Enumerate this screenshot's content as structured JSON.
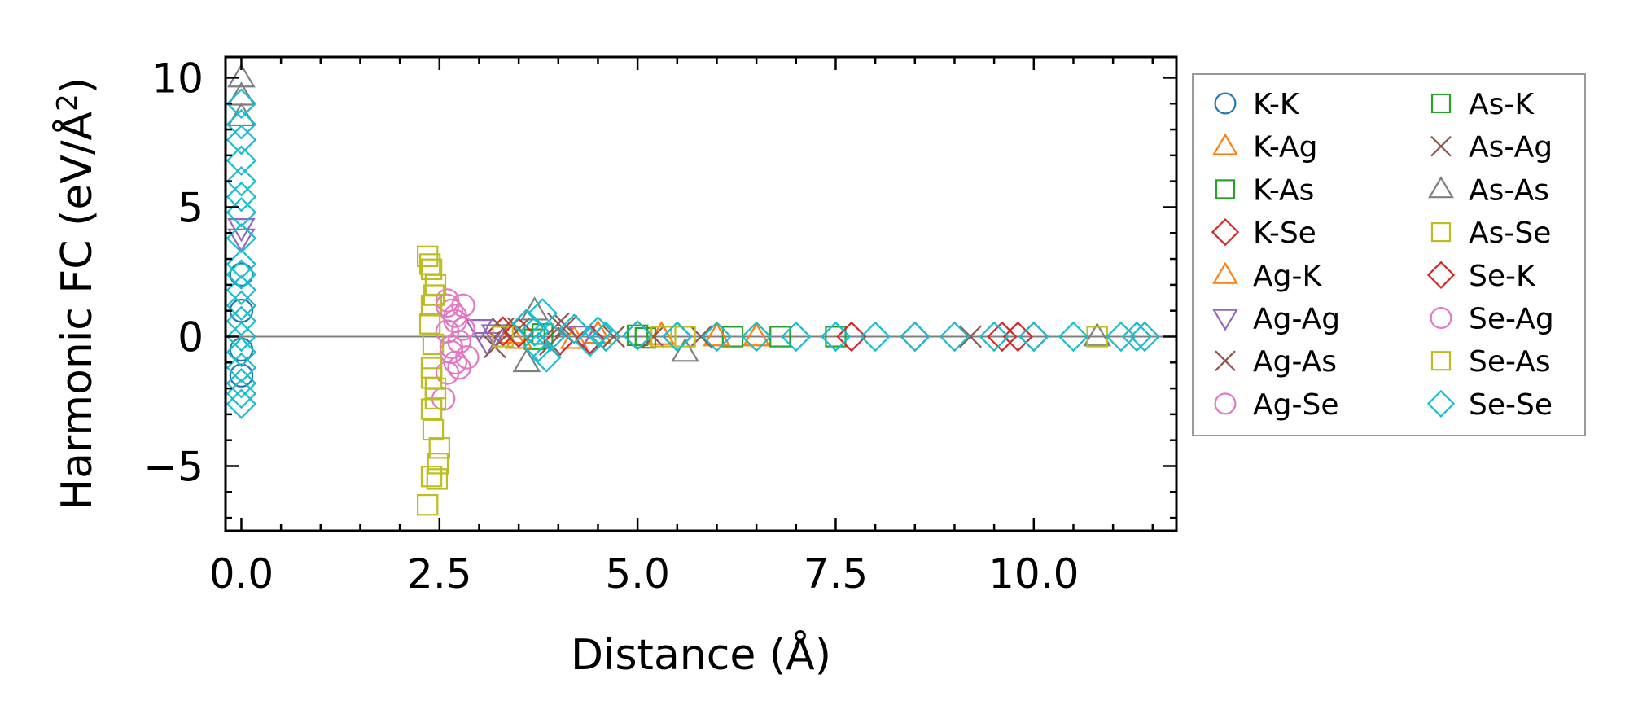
{
  "chart_data": {
    "type": "scatter",
    "title": "",
    "xlabel": "Distance (Å)",
    "ylabel": "Harmonic FC (eV/Å²)",
    "ylabel_parts": {
      "main": "Harmonic FC (eV/Å",
      "sup": "2",
      "end": ")"
    },
    "xlim": [
      -0.2,
      11.8
    ],
    "ylim": [
      -7.5,
      10.8
    ],
    "xticks": [
      0.0,
      2.5,
      5.0,
      7.5,
      10.0
    ],
    "xtick_labels": [
      "0.0",
      "2.5",
      "5.0",
      "7.5",
      "10.0"
    ],
    "yticks": [
      -5,
      0,
      5,
      10
    ],
    "ytick_labels": [
      "−5",
      "0",
      "5",
      "10"
    ],
    "zero_line": true,
    "grid": false,
    "legend_position": "outside-right",
    "series": [
      {
        "name": "K-K",
        "marker": "circle",
        "color": "#1f77b4",
        "points": [
          [
            0.0,
            2.4
          ],
          [
            0.0,
            1.0
          ],
          [
            0.0,
            -0.5
          ],
          [
            0.0,
            -1.5
          ]
        ]
      },
      {
        "name": "K-Ag",
        "marker": "triangle",
        "color": "#ff7f0e",
        "points": [
          [
            3.4,
            0.1
          ],
          [
            4.2,
            -0.1
          ],
          [
            5.3,
            0.05
          ],
          [
            6.5,
            0.0
          ]
        ]
      },
      {
        "name": "K-As",
        "marker": "square",
        "color": "#2ca02c",
        "points": [
          [
            3.7,
            -0.1
          ],
          [
            5.0,
            0.05
          ],
          [
            6.2,
            0.0
          ],
          [
            7.5,
            0.0
          ]
        ]
      },
      {
        "name": "K-Se",
        "marker": "diamond",
        "color": "#d62728",
        "points": [
          [
            3.3,
            0.2
          ],
          [
            4.0,
            -0.2
          ],
          [
            5.5,
            0.0
          ],
          [
            8.5,
            0.0
          ],
          [
            9.6,
            0.0
          ],
          [
            10.0,
            0.0
          ]
        ]
      },
      {
        "name": "Ag-K",
        "marker": "triangle",
        "color": "#ff7f0e",
        "points": [
          [
            3.5,
            -0.1
          ],
          [
            4.5,
            0.1
          ],
          [
            6.0,
            0.0
          ]
        ]
      },
      {
        "name": "Ag-Ag",
        "marker": "triangle-down",
        "color": "#9467bd",
        "points": [
          [
            0.0,
            4.2
          ],
          [
            0.0,
            3.8
          ],
          [
            3.0,
            0.3
          ],
          [
            3.1,
            -0.2
          ],
          [
            3.2,
            0.1
          ],
          [
            4.3,
            0.05
          ]
        ]
      },
      {
        "name": "Ag-As",
        "marker": "x",
        "color": "#8c564b",
        "points": [
          [
            3.2,
            -0.4
          ],
          [
            3.5,
            0.3
          ],
          [
            4.1,
            0.4
          ],
          [
            4.7,
            0.0
          ],
          [
            5.8,
            0.0
          ],
          [
            9.2,
            0.0
          ]
        ]
      },
      {
        "name": "Ag-Se",
        "marker": "circle",
        "color": "#e377c2",
        "points": [
          [
            2.6,
            1.4
          ],
          [
            2.65,
            1.0
          ],
          [
            2.7,
            0.6
          ],
          [
            2.6,
            0.2
          ],
          [
            2.75,
            -0.2
          ],
          [
            2.65,
            -0.6
          ],
          [
            2.7,
            -1.0
          ],
          [
            2.6,
            -1.4
          ],
          [
            2.55,
            -2.4
          ],
          [
            2.8,
            1.2
          ],
          [
            2.85,
            -0.8
          ]
        ]
      },
      {
        "name": "As-K",
        "marker": "square",
        "color": "#2ca02c",
        "points": [
          [
            3.8,
            0.1
          ],
          [
            5.1,
            -0.05
          ],
          [
            6.8,
            0.0
          ]
        ]
      },
      {
        "name": "As-Ag",
        "marker": "x",
        "color": "#8c564b",
        "points": [
          [
            3.3,
            0.3
          ],
          [
            3.9,
            -0.3
          ],
          [
            4.0,
            0.5
          ],
          [
            5.2,
            0.0
          ]
        ]
      },
      {
        "name": "As-As",
        "marker": "triangle",
        "color": "#7f7f7f",
        "points": [
          [
            0.0,
            10.0
          ],
          [
            0.0,
            9.3
          ],
          [
            0.0,
            8.5
          ],
          [
            3.7,
            1.0
          ],
          [
            3.6,
            -1.0
          ],
          [
            5.6,
            -0.6
          ],
          [
            10.8,
            0.0
          ]
        ]
      },
      {
        "name": "As-Se",
        "marker": "square",
        "color": "#bcbd22",
        "points": [
          [
            2.35,
            3.1
          ],
          [
            2.4,
            2.6
          ],
          [
            2.45,
            2.0
          ],
          [
            2.4,
            1.2
          ],
          [
            2.38,
            0.5
          ],
          [
            2.42,
            -0.3
          ],
          [
            2.4,
            -1.2
          ],
          [
            2.45,
            -2.0
          ],
          [
            2.4,
            -2.8
          ],
          [
            2.42,
            -3.6
          ],
          [
            2.5,
            -4.3
          ],
          [
            2.48,
            -4.9
          ],
          [
            2.47,
            -5.5
          ],
          [
            2.35,
            -6.5
          ],
          [
            2.4,
            -5.4
          ],
          [
            3.3,
            0.0
          ],
          [
            5.3,
            0.0
          ],
          [
            5.6,
            0.0
          ]
        ]
      },
      {
        "name": "Se-K",
        "marker": "diamond",
        "color": "#d62728",
        "points": [
          [
            3.5,
            0.15
          ],
          [
            4.4,
            -0.1
          ],
          [
            7.7,
            0.0
          ],
          [
            9.8,
            0.0
          ]
        ]
      },
      {
        "name": "Se-Ag",
        "marker": "circle",
        "color": "#e377c2",
        "points": [
          [
            2.6,
            1.2
          ],
          [
            2.7,
            0.8
          ],
          [
            2.65,
            -0.4
          ],
          [
            2.75,
            -1.2
          ],
          [
            2.8,
            0.3
          ]
        ]
      },
      {
        "name": "Se-As",
        "marker": "square",
        "color": "#bcbd22",
        "points": [
          [
            2.38,
            2.8
          ],
          [
            2.43,
            1.6
          ],
          [
            2.4,
            -1.6
          ],
          [
            2.45,
            -2.4
          ],
          [
            10.8,
            0.0
          ]
        ]
      },
      {
        "name": "Se-Se",
        "marker": "diamond",
        "color": "#17becf",
        "points": [
          [
            0.0,
            9.0
          ],
          [
            0.0,
            8.2
          ],
          [
            0.0,
            7.6
          ],
          [
            0.0,
            6.8
          ],
          [
            0.0,
            6.0
          ],
          [
            0.0,
            5.4
          ],
          [
            0.0,
            4.8
          ],
          [
            0.0,
            3.8
          ],
          [
            0.0,
            2.8
          ],
          [
            0.0,
            2.4
          ],
          [
            0.0,
            1.8
          ],
          [
            0.0,
            1.2
          ],
          [
            0.0,
            0.6
          ],
          [
            0.0,
            0.0
          ],
          [
            0.0,
            -0.6
          ],
          [
            0.0,
            -1.2
          ],
          [
            0.0,
            -1.8
          ],
          [
            0.0,
            -2.2
          ],
          [
            0.0,
            -2.6
          ],
          [
            3.6,
            0.5
          ],
          [
            3.75,
            -0.4
          ],
          [
            3.8,
            0.9
          ],
          [
            3.85,
            -0.8
          ],
          [
            3.7,
            0.2
          ],
          [
            3.9,
            0.0
          ],
          [
            4.2,
            0.3
          ],
          [
            4.4,
            -0.2
          ],
          [
            4.5,
            0.2
          ],
          [
            4.6,
            0.0
          ],
          [
            5.0,
            0.05
          ],
          [
            5.5,
            0.0
          ],
          [
            6.0,
            0.0
          ],
          [
            6.5,
            0.0
          ],
          [
            7.0,
            0.0
          ],
          [
            7.5,
            0.0
          ],
          [
            8.0,
            0.0
          ],
          [
            8.5,
            0.0
          ],
          [
            9.0,
            0.0
          ],
          [
            9.5,
            0.0
          ],
          [
            10.0,
            0.0
          ],
          [
            10.5,
            0.0
          ],
          [
            11.1,
            0.0
          ],
          [
            11.3,
            0.0
          ],
          [
            11.4,
            0.0
          ]
        ]
      }
    ]
  }
}
